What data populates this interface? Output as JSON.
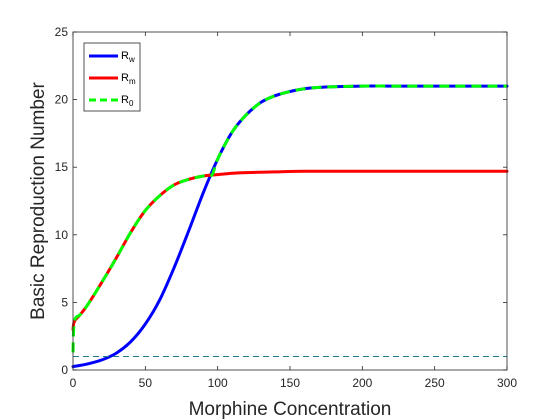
{
  "chart_data": {
    "type": "line",
    "xlabel": "Morphine Concentration",
    "ylabel": "Basic Reproduction Number",
    "xlim": [
      0,
      300
    ],
    "ylim": [
      0,
      25
    ],
    "xticks": [
      0,
      50,
      100,
      150,
      200,
      250,
      300
    ],
    "yticks": [
      0,
      5,
      10,
      15,
      20,
      25
    ],
    "grid": false,
    "legend_position": "top-left",
    "legend": [
      {
        "base": "R",
        "sub": "w",
        "color": "#0000ff",
        "style": "solid"
      },
      {
        "base": "R",
        "sub": "m",
        "color": "#ff0000",
        "style": "solid"
      },
      {
        "base": "R",
        "sub": "0",
        "color": "#00ff00",
        "style": "dashed"
      }
    ],
    "series": [
      {
        "name": "Rw",
        "color": "#0000ff",
        "style": "solid",
        "x": [
          0,
          10,
          20,
          30,
          40,
          50,
          60,
          70,
          80,
          90,
          100,
          110,
          120,
          130,
          140,
          150,
          160,
          170,
          180,
          200,
          220,
          250,
          300
        ],
        "y": [
          0.25,
          0.45,
          0.75,
          1.25,
          2.1,
          3.4,
          5.2,
          7.6,
          10.3,
          13.1,
          15.6,
          17.6,
          18.9,
          19.8,
          20.3,
          20.6,
          20.8,
          20.9,
          20.95,
          21.0,
          21.0,
          21.0,
          21.0
        ]
      },
      {
        "name": "Rm",
        "color": "#ff0000",
        "style": "solid",
        "x": [
          0,
          1,
          5,
          10,
          20,
          30,
          40,
          50,
          60,
          70,
          80,
          90,
          100,
          110,
          120,
          140,
          160,
          200,
          250,
          300
        ],
        "y": [
          3.0,
          3.6,
          4.1,
          4.8,
          6.5,
          8.3,
          10.2,
          11.8,
          12.9,
          13.7,
          14.1,
          14.35,
          14.45,
          14.55,
          14.6,
          14.65,
          14.7,
          14.7,
          14.7,
          14.7
        ]
      },
      {
        "name": "R0",
        "color": "#00ff00",
        "style": "dashed",
        "x": [
          0,
          1,
          5,
          10,
          20,
          30,
          40,
          50,
          60,
          70,
          80,
          90,
          96,
          100,
          110,
          120,
          130,
          140,
          150,
          160,
          170,
          180,
          200,
          220,
          250,
          300
        ],
        "y": [
          1.3,
          3.6,
          4.1,
          4.8,
          6.5,
          8.3,
          10.2,
          11.8,
          12.9,
          13.7,
          14.1,
          14.35,
          14.42,
          15.6,
          17.6,
          18.9,
          19.8,
          20.3,
          20.6,
          20.8,
          20.9,
          20.95,
          21.0,
          21.0,
          21.0,
          21.0
        ]
      },
      {
        "name": "threshold",
        "color": "#1f7a8c",
        "style": "dashed",
        "x": [
          0,
          300
        ],
        "y": [
          1,
          1
        ]
      }
    ]
  }
}
